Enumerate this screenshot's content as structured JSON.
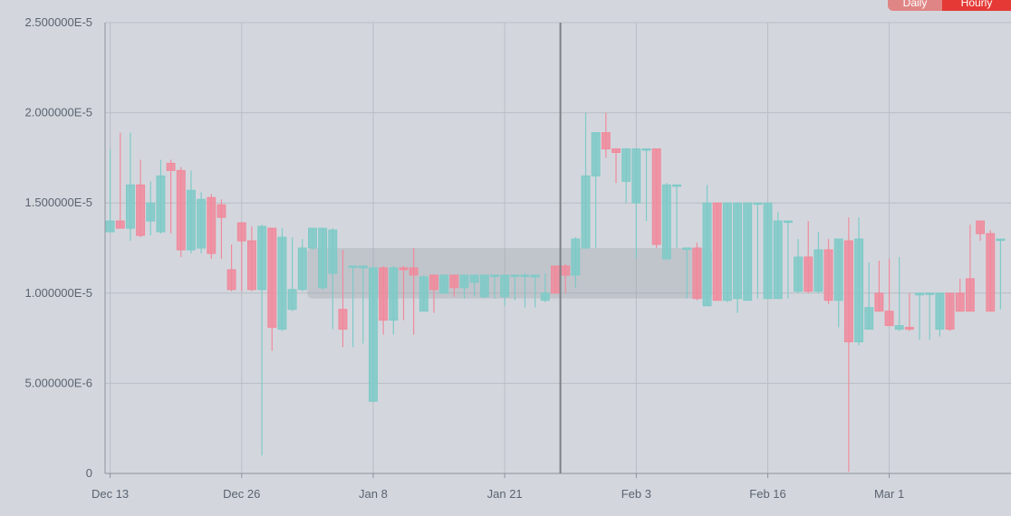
{
  "toggle": {
    "options": [
      "Daily",
      "Hourly"
    ],
    "selected": "Hourly"
  },
  "chart_data": {
    "type": "candlestick",
    "title": "",
    "xlabel": "",
    "ylabel": "",
    "ylim": [
      0,
      2.5e-05
    ],
    "y_ticks": [
      "0",
      "5.000000E-6",
      "1.000000E-5",
      "1.500000E-5",
      "2.000000E-5",
      "2.500000E-5"
    ],
    "x_ticks": [
      "Dec 13",
      "Dec 26",
      "Jan 8",
      "Jan 21",
      "Feb 3",
      "Feb 16",
      "Mar 1"
    ],
    "crosshair_date": "Jan 27",
    "highlight_range": {
      "from_date": "Jan 2",
      "to_date": "Feb 10",
      "low": 9.7e-06,
      "high": 1.25e-05
    },
    "up_color": "#7ecac8",
    "down_color": "#f08a9c",
    "candles": [
      {
        "date": "Dec 13",
        "open": 1.34e-05,
        "high": 1.8e-05,
        "low": 1.34e-05,
        "close": 1.4e-05
      },
      {
        "date": "Dec 14",
        "open": 1.4e-05,
        "high": 1.89e-05,
        "low": 1.36e-05,
        "close": 1.36e-05
      },
      {
        "date": "Dec 15",
        "open": 1.36e-05,
        "high": 1.89e-05,
        "low": 1.29e-05,
        "close": 1.6e-05
      },
      {
        "date": "Dec 16",
        "open": 1.6e-05,
        "high": 1.74e-05,
        "low": 1.31e-05,
        "close": 1.32e-05
      },
      {
        "date": "Dec 17",
        "open": 1.4e-05,
        "high": 1.62e-05,
        "low": 1.32e-05,
        "close": 1.5e-05
      },
      {
        "date": "Dec 18",
        "open": 1.34e-05,
        "high": 1.74e-05,
        "low": 1.33e-05,
        "close": 1.65e-05
      },
      {
        "date": "Dec 19",
        "open": 1.72e-05,
        "high": 1.74e-05,
        "low": 1.33e-05,
        "close": 1.68e-05
      },
      {
        "date": "Dec 20",
        "open": 1.68e-05,
        "high": 1.7e-05,
        "low": 1.2e-05,
        "close": 1.24e-05
      },
      {
        "date": "Dec 21",
        "open": 1.24e-05,
        "high": 1.68e-05,
        "low": 1.22e-05,
        "close": 1.57e-05
      },
      {
        "date": "Dec 22",
        "open": 1.25e-05,
        "high": 1.56e-05,
        "low": 1.22e-05,
        "close": 1.52e-05
      },
      {
        "date": "Dec 23",
        "open": 1.53e-05,
        "high": 1.55e-05,
        "low": 1.19e-05,
        "close": 1.22e-05
      },
      {
        "date": "Dec 24",
        "open": 1.49e-05,
        "high": 1.52e-05,
        "low": 1.19e-05,
        "close": 1.42e-05
      },
      {
        "date": "Dec 25",
        "open": 1.13e-05,
        "high": 1.27e-05,
        "low": 1.01e-05,
        "close": 1.02e-05
      },
      {
        "date": "Dec 26",
        "open": 1.39e-05,
        "high": 1.39e-05,
        "low": 1.01e-05,
        "close": 1.29e-05
      },
      {
        "date": "Dec 27",
        "open": 1.29e-05,
        "high": 1.37e-05,
        "low": 1.01e-05,
        "close": 1.02e-05
      },
      {
        "date": "Dec 28",
        "open": 1.02e-05,
        "high": 1.38e-05,
        "low": 1e-06,
        "close": 1.37e-05
      },
      {
        "date": "Dec 29",
        "open": 1.36e-05,
        "high": 1.36e-05,
        "low": 6.8e-06,
        "close": 8.1e-06
      },
      {
        "date": "Dec 30",
        "open": 8e-06,
        "high": 1.36e-05,
        "low": 7.9e-06,
        "close": 1.31e-05
      },
      {
        "date": "Dec 31",
        "open": 9.1e-06,
        "high": 1.31e-05,
        "low": 9e-06,
        "close": 1.02e-05
      },
      {
        "date": "Jan 1",
        "open": 1.02e-05,
        "high": 1.3e-05,
        "low": 1.01e-05,
        "close": 1.25e-05
      },
      {
        "date": "Jan 2",
        "open": 1.25e-05,
        "high": 1.36e-05,
        "low": 1.24e-05,
        "close": 1.36e-05
      },
      {
        "date": "Jan 3",
        "open": 1.03e-05,
        "high": 1.36e-05,
        "low": 1.02e-05,
        "close": 1.36e-05
      },
      {
        "date": "Jan 4",
        "open": 1.11e-05,
        "high": 1.36e-05,
        "low": 8e-06,
        "close": 1.35e-05
      },
      {
        "date": "Jan 5",
        "open": 9.1e-06,
        "high": 1.24e-05,
        "low": 7e-06,
        "close": 8e-06
      },
      {
        "date": "Jan 6",
        "open": 1.15e-05,
        "high": 1.15e-05,
        "low": 7e-06,
        "close": 1.15e-05
      },
      {
        "date": "Jan 7",
        "open": 1.14e-05,
        "high": 1.15e-05,
        "low": 7.2e-06,
        "close": 1.15e-05
      },
      {
        "date": "Jan 8",
        "open": 4e-06,
        "high": 1.15e-05,
        "low": 4e-06,
        "close": 1.14e-05
      },
      {
        "date": "Jan 9",
        "open": 1.14e-05,
        "high": 1.15e-05,
        "low": 7.7e-06,
        "close": 8.5e-06
      },
      {
        "date": "Jan 10",
        "open": 8.5e-06,
        "high": 1.15e-05,
        "low": 7.7e-06,
        "close": 1.14e-05
      },
      {
        "date": "Jan 11",
        "open": 1.14e-05,
        "high": 1.15e-05,
        "low": 8.5e-06,
        "close": 1.13e-05
      },
      {
        "date": "Jan 12",
        "open": 1.14e-05,
        "high": 1.25e-05,
        "low": 7.7e-06,
        "close": 1.1e-05
      },
      {
        "date": "Jan 13",
        "open": 9e-06,
        "high": 1.1e-05,
        "low": 9e-06,
        "close": 1.09e-05
      },
      {
        "date": "Jan 14",
        "open": 1.1e-05,
        "high": 1.1e-05,
        "low": 8.9e-06,
        "close": 1.02e-05
      },
      {
        "date": "Jan 15",
        "open": 1e-05,
        "high": 1.1e-05,
        "low": 1e-05,
        "close": 1.1e-05
      },
      {
        "date": "Jan 16",
        "open": 1.1e-05,
        "high": 1.1e-05,
        "low": 9.8e-06,
        "close": 1.03e-05
      },
      {
        "date": "Jan 17",
        "open": 1.03e-05,
        "high": 1.1e-05,
        "low": 9.7e-06,
        "close": 1.1e-05
      },
      {
        "date": "Jan 18",
        "open": 1.06e-05,
        "high": 1.1e-05,
        "low": 9.8e-06,
        "close": 1.1e-05
      },
      {
        "date": "Jan 19",
        "open": 9.8e-06,
        "high": 1.1e-05,
        "low": 9.7e-06,
        "close": 1.1e-05
      },
      {
        "date": "Jan 20",
        "open": 1.1e-05,
        "high": 1.1e-05,
        "low": 9.7e-06,
        "close": 1.1e-05
      },
      {
        "date": "Jan 21",
        "open": 9.8e-06,
        "high": 1.1e-05,
        "low": 9.3e-06,
        "close": 1.1e-05
      },
      {
        "date": "Jan 22",
        "open": 1.1e-05,
        "high": 1.1e-05,
        "low": 9.6e-06,
        "close": 1.1e-05
      },
      {
        "date": "Jan 23",
        "open": 1.1e-05,
        "high": 1.11e-05,
        "low": 9.2e-06,
        "close": 1.1e-05
      },
      {
        "date": "Jan 24",
        "open": 1.09e-05,
        "high": 1.1e-05,
        "low": 9.2e-06,
        "close": 1.1e-05
      },
      {
        "date": "Jan 25",
        "open": 9.6e-06,
        "high": 1.11e-05,
        "low": 9.5e-06,
        "close": 1e-05
      },
      {
        "date": "Jan 26",
        "open": 1.15e-05,
        "high": 1.15e-05,
        "low": 1e-05,
        "close": 1e-05
      },
      {
        "date": "Jan 27",
        "open": 1.15e-05,
        "high": 1.16e-05,
        "low": 1e-05,
        "close": 1.1e-05
      },
      {
        "date": "Jan 28",
        "open": 1.1e-05,
        "high": 1.31e-05,
        "low": 1.03e-05,
        "close": 1.3e-05
      },
      {
        "date": "Jan 29",
        "open": 1.25e-05,
        "high": 2e-05,
        "low": 1.25e-05,
        "close": 1.65e-05
      },
      {
        "date": "Jan 30",
        "open": 1.65e-05,
        "high": 1.89e-05,
        "low": 1.25e-05,
        "close": 1.89e-05
      },
      {
        "date": "Jan 31",
        "open": 1.89e-05,
        "high": 2e-05,
        "low": 1.75e-05,
        "close": 1.8e-05
      },
      {
        "date": "Feb 1",
        "open": 1.8e-05,
        "high": 1.8e-05,
        "low": 1.61e-05,
        "close": 1.78e-05
      },
      {
        "date": "Feb 2",
        "open": 1.62e-05,
        "high": 1.8e-05,
        "low": 1.5e-05,
        "close": 1.8e-05
      },
      {
        "date": "Feb 3",
        "open": 1.5e-05,
        "high": 1.8e-05,
        "low": 1.19e-05,
        "close": 1.8e-05
      },
      {
        "date": "Feb 4",
        "open": 1.8e-05,
        "high": 1.8e-05,
        "low": 1.4e-05,
        "close": 1.8e-05
      },
      {
        "date": "Feb 5",
        "open": 1.8e-05,
        "high": 1.8e-05,
        "low": 1.25e-05,
        "close": 1.27e-05
      },
      {
        "date": "Feb 6",
        "open": 1.19e-05,
        "high": 1.61e-05,
        "low": 1.19e-05,
        "close": 1.6e-05
      },
      {
        "date": "Feb 7",
        "open": 1.6e-05,
        "high": 1.6e-05,
        "low": 1.25e-05,
        "close": 1.6e-05
      },
      {
        "date": "Feb 8",
        "open": 1.25e-05,
        "high": 1.25e-05,
        "low": 9.7e-06,
        "close": 1.25e-05
      },
      {
        "date": "Feb 9",
        "open": 1.25e-05,
        "high": 1.28e-05,
        "low": 9.6e-06,
        "close": 9.7e-06
      },
      {
        "date": "Feb 10",
        "open": 9.3e-06,
        "high": 1.6e-05,
        "low": 9.3e-06,
        "close": 1.5e-05
      },
      {
        "date": "Feb 11",
        "open": 1.5e-05,
        "high": 1.5e-05,
        "low": 9.6e-06,
        "close": 9.6e-06
      },
      {
        "date": "Feb 12",
        "open": 9.6e-06,
        "high": 1.5e-05,
        "low": 9.5e-06,
        "close": 1.5e-05
      },
      {
        "date": "Feb 13",
        "open": 9.7e-06,
        "high": 1.5e-05,
        "low": 8.9e-06,
        "close": 1.5e-05
      },
      {
        "date": "Feb 14",
        "open": 9.6e-06,
        "high": 1.5e-05,
        "low": 9.6e-06,
        "close": 1.5e-05
      },
      {
        "date": "Feb 15",
        "open": 1.5e-05,
        "high": 1.5e-05,
        "low": 9.7e-06,
        "close": 1.5e-05
      },
      {
        "date": "Feb 16",
        "open": 9.7e-06,
        "high": 1.5e-05,
        "low": 9.7e-06,
        "close": 1.5e-05
      },
      {
        "date": "Feb 17",
        "open": 9.7e-06,
        "high": 1.45e-05,
        "low": 9.7e-06,
        "close": 1.4e-05
      },
      {
        "date": "Feb 18",
        "open": 1.4e-05,
        "high": 1.4e-05,
        "low": 9.7e-06,
        "close": 1.4e-05
      },
      {
        "date": "Feb 19",
        "open": 1.01e-05,
        "high": 1.3e-05,
        "low": 1e-05,
        "close": 1.2e-05
      },
      {
        "date": "Feb 20",
        "open": 1.2e-05,
        "high": 1.4e-05,
        "low": 1e-05,
        "close": 1.01e-05
      },
      {
        "date": "Feb 21",
        "open": 1.01e-05,
        "high": 1.34e-05,
        "low": 1e-05,
        "close": 1.24e-05
      },
      {
        "date": "Feb 22",
        "open": 1.24e-05,
        "high": 1.3e-05,
        "low": 9.4e-06,
        "close": 9.6e-06
      },
      {
        "date": "Feb 23",
        "open": 9.6e-06,
        "high": 1.3e-05,
        "low": 8.1e-06,
        "close": 1.3e-05
      },
      {
        "date": "Feb 24",
        "open": 1.29e-05,
        "high": 1.42e-05,
        "low": 1e-07,
        "close": 7.3e-06
      },
      {
        "date": "Feb 25",
        "open": 7.3e-06,
        "high": 1.42e-05,
        "low": 7.1e-06,
        "close": 1.3e-05
      },
      {
        "date": "Feb 26",
        "open": 8e-06,
        "high": 1.17e-05,
        "low": 8e-06,
        "close": 9.2e-06
      },
      {
        "date": "Feb 27",
        "open": 1e-05,
        "high": 1.18e-05,
        "low": 9e-06,
        "close": 9e-06
      },
      {
        "date": "Mar 1",
        "open": 9e-06,
        "high": 1.19e-05,
        "low": 8.2e-06,
        "close": 8.2e-06
      },
      {
        "date": "Mar 2",
        "open": 8e-06,
        "high": 1.2e-05,
        "low": 7.9e-06,
        "close": 8.2e-06
      },
      {
        "date": "Mar 3",
        "open": 8.1e-06,
        "high": 1e-05,
        "low": 7.9e-06,
        "close": 8e-06
      },
      {
        "date": "Mar 4",
        "open": 9.9e-06,
        "high": 1e-05,
        "low": 7.4e-06,
        "close": 1e-05
      },
      {
        "date": "Mar 5",
        "open": 1e-05,
        "high": 1e-05,
        "low": 7.4e-06,
        "close": 1e-05
      },
      {
        "date": "Mar 6",
        "open": 8e-06,
        "high": 1e-05,
        "low": 7.6e-06,
        "close": 1e-05
      },
      {
        "date": "Mar 7",
        "open": 1e-05,
        "high": 1e-05,
        "low": 7.9e-06,
        "close": 8e-06
      },
      {
        "date": "Mar 8",
        "open": 1e-05,
        "high": 1.08e-05,
        "low": 9e-06,
        "close": 9e-06
      },
      {
        "date": "Mar 9",
        "open": 1.08e-05,
        "high": 1.38e-05,
        "low": 9e-06,
        "close": 9e-06
      },
      {
        "date": "Mar 10",
        "open": 1.4e-05,
        "high": 1.4e-05,
        "low": 1.29e-05,
        "close": 1.33e-05
      },
      {
        "date": "Mar 11",
        "open": 1.33e-05,
        "high": 1.35e-05,
        "low": 9e-06,
        "close": 9e-06
      },
      {
        "date": "Mar 12",
        "open": 1.3e-05,
        "high": 1.3e-05,
        "low": 9.1e-06,
        "close": 1.3e-05
      }
    ]
  }
}
